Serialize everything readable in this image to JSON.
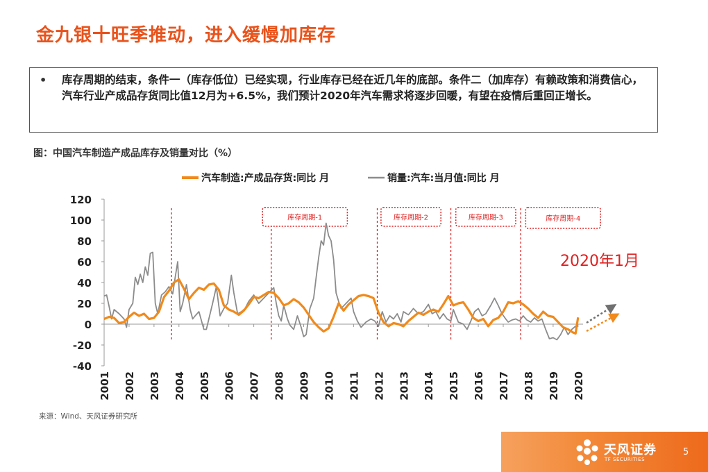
{
  "slide": {
    "title": "金九银十旺季推动，进入缓慢加库存",
    "bullet": "•",
    "text": "库存周期的结束，条件一（库存低位）已经实现，行业库存已经在近几年的底部。条件二（加库存）有赖政策和消费信心，汽车行业产成品存货同比值12月为+6.5%，我们预计2020年汽车需求将逐步回暖，有望在疫情后重回正增长。",
    "figure_caption": "图：中国汽车制造产成品库存及销量对比（%）",
    "source": "来源：Wind、天风证券研究所",
    "page_number": "5"
  },
  "footer": {
    "logo_name": "天风证券",
    "logo_sub": "TF SECURITIES",
    "brand_color": "#ee6a1c"
  },
  "colors": {
    "title": "#e8531c",
    "inventory_line": "#f08a1c",
    "sales_line": "#8c8c8c",
    "cycle_box": "#e02020",
    "annotation": "#e02020"
  },
  "chart_data": {
    "type": "line",
    "ylim": [
      -40,
      120
    ],
    "yticks": [
      -40,
      -20,
      0,
      20,
      40,
      60,
      80,
      100,
      120
    ],
    "xlim": [
      2001,
      2020.2
    ],
    "xticks": [
      "2001",
      "2002",
      "2003",
      "2004",
      "2005",
      "2006",
      "2007",
      "2008",
      "2009",
      "2010",
      "2011",
      "2012",
      "2013",
      "2014",
      "2015",
      "2016",
      "2017",
      "2018",
      "2019",
      "2020"
    ],
    "legend_position": "top",
    "grid": false,
    "series": [
      {
        "name": "汽车制造:产成品存货:同比 月",
        "color": "#f08a1c",
        "points": [
          [
            2001.0,
            5
          ],
          [
            2001.2,
            7
          ],
          [
            2001.4,
            6
          ],
          [
            2001.6,
            1
          ],
          [
            2001.8,
            2
          ],
          [
            2002.0,
            7
          ],
          [
            2002.2,
            11
          ],
          [
            2002.4,
            8
          ],
          [
            2002.6,
            10
          ],
          [
            2002.8,
            5
          ],
          [
            2003.0,
            6
          ],
          [
            2003.2,
            12
          ],
          [
            2003.4,
            26
          ],
          [
            2003.6,
            32
          ],
          [
            2003.8,
            40
          ],
          [
            2004.0,
            43
          ],
          [
            2004.2,
            34
          ],
          [
            2004.4,
            24
          ],
          [
            2004.6,
            30
          ],
          [
            2004.8,
            35
          ],
          [
            2005.0,
            33
          ],
          [
            2005.2,
            38
          ],
          [
            2005.4,
            39
          ],
          [
            2005.6,
            33
          ],
          [
            2005.8,
            18
          ],
          [
            2006.0,
            14
          ],
          [
            2006.2,
            12
          ],
          [
            2006.4,
            9
          ],
          [
            2006.6,
            13
          ],
          [
            2006.8,
            19
          ],
          [
            2007.0,
            26
          ],
          [
            2007.2,
            25
          ],
          [
            2007.4,
            28
          ],
          [
            2007.6,
            31
          ],
          [
            2007.8,
            30
          ],
          [
            2008.0,
            25
          ],
          [
            2008.2,
            18
          ],
          [
            2008.4,
            20
          ],
          [
            2008.6,
            24
          ],
          [
            2008.8,
            21
          ],
          [
            2009.0,
            16
          ],
          [
            2009.2,
            9
          ],
          [
            2009.4,
            2
          ],
          [
            2009.6,
            -3
          ],
          [
            2009.8,
            -7
          ],
          [
            2010.0,
            -4
          ],
          [
            2010.2,
            7
          ],
          [
            2010.4,
            20
          ],
          [
            2010.6,
            13
          ],
          [
            2010.8,
            19
          ],
          [
            2011.0,
            23
          ],
          [
            2011.2,
            27
          ],
          [
            2011.4,
            28
          ],
          [
            2011.6,
            27
          ],
          [
            2011.8,
            25
          ],
          [
            2012.0,
            11
          ],
          [
            2012.2,
            2
          ],
          [
            2012.4,
            -2
          ],
          [
            2012.6,
            1
          ],
          [
            2012.8,
            0
          ],
          [
            2013.0,
            -2
          ],
          [
            2013.2,
            3
          ],
          [
            2013.4,
            7
          ],
          [
            2013.6,
            11
          ],
          [
            2013.8,
            9
          ],
          [
            2014.0,
            12
          ],
          [
            2014.2,
            14
          ],
          [
            2014.4,
            12
          ],
          [
            2014.6,
            19
          ],
          [
            2014.8,
            27
          ],
          [
            2015.0,
            18
          ],
          [
            2015.2,
            20
          ],
          [
            2015.4,
            21
          ],
          [
            2015.6,
            14
          ],
          [
            2015.8,
            6
          ],
          [
            2016.0,
            3
          ],
          [
            2016.2,
            5
          ],
          [
            2016.4,
            -2
          ],
          [
            2016.6,
            4
          ],
          [
            2016.8,
            6
          ],
          [
            2017.0,
            12
          ],
          [
            2017.2,
            21
          ],
          [
            2017.4,
            20
          ],
          [
            2017.6,
            22
          ],
          [
            2017.8,
            19
          ],
          [
            2018.0,
            15
          ],
          [
            2018.2,
            10
          ],
          [
            2018.4,
            6
          ],
          [
            2018.6,
            12
          ],
          [
            2018.8,
            8
          ],
          [
            2019.0,
            7
          ],
          [
            2019.2,
            2
          ],
          [
            2019.4,
            -3
          ],
          [
            2019.6,
            -5
          ],
          [
            2019.8,
            -8
          ],
          [
            2019.9,
            -9
          ],
          [
            2020.0,
            6.5
          ]
        ]
      },
      {
        "name": "销量:汽车:当月值:同比 月",
        "color": "#8c8c8c",
        "points": [
          [
            2001.0,
            27
          ],
          [
            2001.1,
            28
          ],
          [
            2001.2,
            17
          ],
          [
            2001.3,
            5
          ],
          [
            2001.4,
            14
          ],
          [
            2001.6,
            10
          ],
          [
            2001.8,
            5
          ],
          [
            2001.9,
            -3
          ],
          [
            2002.0,
            14
          ],
          [
            2002.15,
            20
          ],
          [
            2002.25,
            45
          ],
          [
            2002.35,
            38
          ],
          [
            2002.45,
            48
          ],
          [
            2002.55,
            40
          ],
          [
            2002.65,
            55
          ],
          [
            2002.75,
            47
          ],
          [
            2002.85,
            68
          ],
          [
            2002.95,
            69
          ],
          [
            2003.05,
            20
          ],
          [
            2003.15,
            10
          ],
          [
            2003.3,
            28
          ],
          [
            2003.45,
            31
          ],
          [
            2003.6,
            36
          ],
          [
            2003.75,
            29
          ],
          [
            2003.85,
            45
          ],
          [
            2003.95,
            60
          ],
          [
            2004.05,
            12
          ],
          [
            2004.15,
            20
          ],
          [
            2004.3,
            38
          ],
          [
            2004.45,
            14
          ],
          [
            2004.55,
            5
          ],
          [
            2004.65,
            8
          ],
          [
            2004.8,
            12
          ],
          [
            2005.0,
            -5
          ],
          [
            2005.1,
            -5
          ],
          [
            2005.2,
            5
          ],
          [
            2005.35,
            20
          ],
          [
            2005.5,
            36
          ],
          [
            2005.65,
            8
          ],
          [
            2005.8,
            15
          ],
          [
            2005.95,
            20
          ],
          [
            2006.1,
            47
          ],
          [
            2006.2,
            30
          ],
          [
            2006.35,
            10
          ],
          [
            2006.5,
            12
          ],
          [
            2006.65,
            15
          ],
          [
            2006.8,
            22
          ],
          [
            2007.0,
            28
          ],
          [
            2007.2,
            20
          ],
          [
            2007.4,
            25
          ],
          [
            2007.6,
            30
          ],
          [
            2007.8,
            35
          ],
          [
            2007.9,
            20
          ],
          [
            2008.0,
            8
          ],
          [
            2008.1,
            3
          ],
          [
            2008.2,
            18
          ],
          [
            2008.35,
            5
          ],
          [
            2008.45,
            -1
          ],
          [
            2008.6,
            -5
          ],
          [
            2008.75,
            8
          ],
          [
            2008.9,
            -3
          ],
          [
            2009.0,
            -12
          ],
          [
            2009.1,
            -10
          ],
          [
            2009.25,
            15
          ],
          [
            2009.4,
            25
          ],
          [
            2009.5,
            45
          ],
          [
            2009.6,
            64
          ],
          [
            2009.7,
            80
          ],
          [
            2009.8,
            76
          ],
          [
            2009.9,
            97
          ],
          [
            2010.0,
            85
          ],
          [
            2010.1,
            80
          ],
          [
            2010.2,
            62
          ],
          [
            2010.3,
            30
          ],
          [
            2010.4,
            22
          ],
          [
            2010.5,
            15
          ],
          [
            2010.7,
            20
          ],
          [
            2010.9,
            25
          ],
          [
            2011.0,
            12
          ],
          [
            2011.15,
            3
          ],
          [
            2011.3,
            -3
          ],
          [
            2011.5,
            2
          ],
          [
            2011.7,
            5
          ],
          [
            2011.85,
            3
          ],
          [
            2012.0,
            -2
          ],
          [
            2012.15,
            12
          ],
          [
            2012.3,
            2
          ],
          [
            2012.45,
            8
          ],
          [
            2012.6,
            5
          ],
          [
            2012.75,
            10
          ],
          [
            2012.9,
            2
          ],
          [
            2013.0,
            12
          ],
          [
            2013.2,
            9
          ],
          [
            2013.4,
            15
          ],
          [
            2013.6,
            10
          ],
          [
            2013.8,
            12
          ],
          [
            2014.0,
            19
          ],
          [
            2014.15,
            10
          ],
          [
            2014.3,
            12
          ],
          [
            2014.45,
            5
          ],
          [
            2014.6,
            10
          ],
          [
            2014.75,
            5
          ],
          [
            2014.9,
            3
          ],
          [
            2015.0,
            14
          ],
          [
            2015.2,
            2
          ],
          [
            2015.4,
            0
          ],
          [
            2015.55,
            -5
          ],
          [
            2015.7,
            3
          ],
          [
            2015.85,
            12
          ],
          [
            2016.0,
            15
          ],
          [
            2016.15,
            8
          ],
          [
            2016.3,
            10
          ],
          [
            2016.5,
            18
          ],
          [
            2016.65,
            25
          ],
          [
            2016.8,
            18
          ],
          [
            2016.95,
            10
          ],
          [
            2017.1,
            5
          ],
          [
            2017.2,
            2
          ],
          [
            2017.35,
            4
          ],
          [
            2017.5,
            5
          ],
          [
            2017.65,
            3
          ],
          [
            2017.8,
            8
          ],
          [
            2017.95,
            4
          ],
          [
            2018.1,
            2
          ],
          [
            2018.25,
            6
          ],
          [
            2018.4,
            3
          ],
          [
            2018.55,
            5
          ],
          [
            2018.7,
            -5
          ],
          [
            2018.85,
            -14
          ],
          [
            2019.0,
            -13
          ],
          [
            2019.15,
            -15
          ],
          [
            2019.3,
            -10
          ],
          [
            2019.45,
            -3
          ],
          [
            2019.6,
            -10
          ],
          [
            2019.75,
            -5
          ],
          [
            2019.9,
            -2
          ],
          [
            2020.0,
            -1
          ]
        ]
      }
    ],
    "cycle_lines": [
      2003.7,
      2007.7,
      2011.95,
      2014.9,
      2017.7
    ],
    "cycle_labels": [
      {
        "label": "库存周期-1",
        "x0": 2007.35,
        "x1": 2010.75,
        "y0": 112,
        "y1": 94
      },
      {
        "label": "库存周期-2",
        "x0": 2012.1,
        "x1": 2014.5,
        "y0": 112,
        "y1": 94
      },
      {
        "label": "库存周期-3",
        "x0": 2015.1,
        "x1": 2017.5,
        "y0": 112,
        "y1": 94
      },
      {
        "label": "库存周期-4",
        "x0": 2017.9,
        "x1": 2020.9,
        "y0": 112,
        "y1": 92
      }
    ],
    "annotation": "2020年1月"
  }
}
